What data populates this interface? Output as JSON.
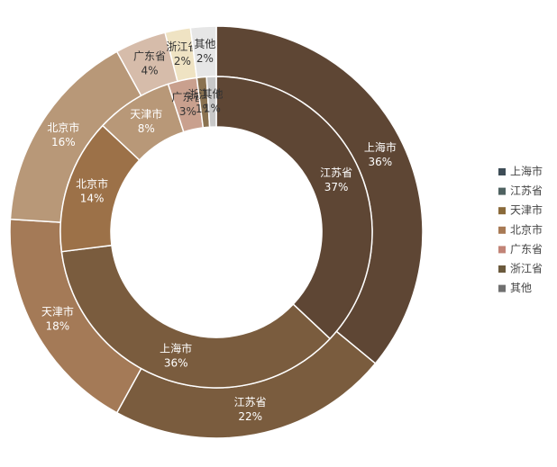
{
  "chart_data": {
    "type": "doughnut",
    "legend": {
      "position": "right",
      "names": [
        "上海市",
        "江苏省",
        "天津市",
        "北京市",
        "广东省",
        "浙江省",
        "其他"
      ],
      "colors": [
        "#3e4d57",
        "#4f6261",
        "#8a6a3a",
        "#a87a55",
        "#c28477",
        "#6b5a3d",
        "#707070"
      ]
    },
    "rings": [
      {
        "categories": [
          "上海市",
          "江苏省",
          "天津市",
          "北京市",
          "广东省",
          "浙江省",
          "其他"
        ],
        "values": [
          36,
          22,
          18,
          16,
          4,
          2,
          2
        ],
        "value_labels": [
          "36%",
          "22%",
          "18%",
          "16%",
          "4%",
          "2%",
          "2%"
        ],
        "colors": [
          "#5e4634",
          "#7a5c3e",
          "#a47a57",
          "#b89878",
          "#d6bcaa",
          "#efe3c3",
          "#e6e6e6"
        ]
      },
      {
        "categories": [
          "江苏省",
          "上海市",
          "北京市",
          "天津市",
          "广东省",
          "浙江省",
          "其他"
        ],
        "values": [
          37,
          36,
          14,
          8,
          3,
          1,
          1
        ],
        "value_labels": [
          "37%",
          "36%",
          "14%",
          "8%",
          "3%",
          "1%",
          "1%"
        ],
        "colors": [
          "#5e4634",
          "#7a5c3e",
          "#9c7148",
          "#b89878",
          "#c9a08e",
          "#8a7250",
          "#c8c8c8"
        ]
      }
    ]
  }
}
